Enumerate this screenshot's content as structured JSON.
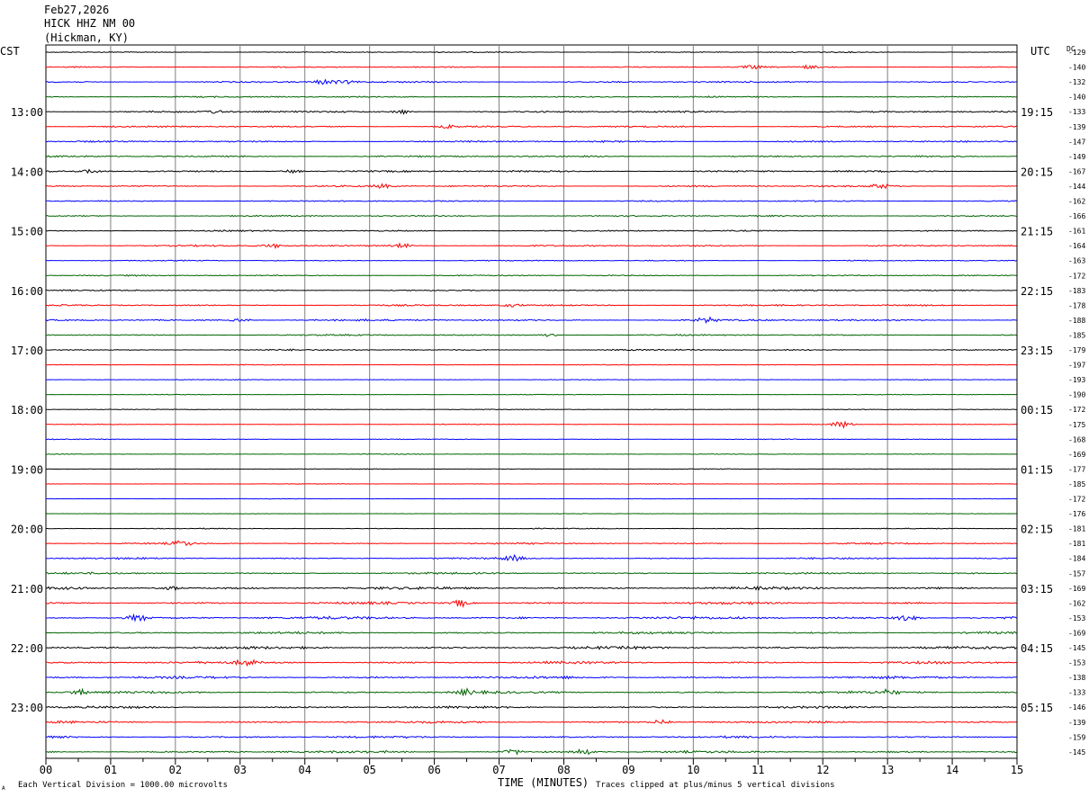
{
  "header": {
    "date": "Feb27,2026",
    "station": "HICK HHZ NM 00",
    "location": "(Hickman, KY)"
  },
  "footer": {
    "vertical_division": "Each Vertical Division = 1000.00 microvolts",
    "clipping": "Traces clipped at plus/minus 5 vertical divisions",
    "corner_mark": "A"
  },
  "colors": {
    "trace_cycle": [
      "#000000",
      "#ff0000",
      "#0000ff",
      "#006400"
    ],
    "grid": "#808080"
  },
  "chart_data": {
    "type": "line",
    "title": "",
    "xlabel": "TIME (MINUTES)",
    "ylabel_left": "CST",
    "ylabel_right": "UTC",
    "dc_label": "DC",
    "xlim": [
      0,
      15
    ],
    "x_ticks": [
      "00",
      "01",
      "02",
      "03",
      "04",
      "05",
      "06",
      "07",
      "08",
      "09",
      "10",
      "11",
      "12",
      "13",
      "14",
      "15"
    ],
    "left_hour_labels": [
      {
        "row": 4,
        "label": "13:00"
      },
      {
        "row": 8,
        "label": "14:00"
      },
      {
        "row": 12,
        "label": "15:00"
      },
      {
        "row": 16,
        "label": "16:00"
      },
      {
        "row": 20,
        "label": "17:00"
      },
      {
        "row": 24,
        "label": "18:00"
      },
      {
        "row": 28,
        "label": "19:00"
      },
      {
        "row": 32,
        "label": "20:00"
      },
      {
        "row": 36,
        "label": "21:00"
      },
      {
        "row": 40,
        "label": "22:00"
      },
      {
        "row": 44,
        "label": "23:00"
      }
    ],
    "right_hour_labels": [
      {
        "row": 4,
        "label": "19:15"
      },
      {
        "row": 8,
        "label": "20:15"
      },
      {
        "row": 12,
        "label": "21:15"
      },
      {
        "row": 16,
        "label": "22:15"
      },
      {
        "row": 20,
        "label": "23:15"
      },
      {
        "row": 24,
        "label": "00:15"
      },
      {
        "row": 28,
        "label": "01:15"
      },
      {
        "row": 32,
        "label": "02:15"
      },
      {
        "row": 36,
        "label": "03:15"
      },
      {
        "row": 40,
        "label": "04:15"
      },
      {
        "row": 44,
        "label": "05:15"
      }
    ],
    "dc_offsets": [
      -129,
      -140,
      -132,
      -140,
      -133,
      -139,
      -147,
      -149,
      -167,
      -144,
      -162,
      -166,
      -161,
      -164,
      -163,
      -172,
      -183,
      -178,
      -188,
      -185,
      -179,
      -197,
      -193,
      -190,
      -172,
      -175,
      -168,
      -169,
      -177,
      -185,
      -172,
      -176,
      -181,
      -181,
      -184,
      -157,
      -169,
      -162,
      -153,
      -169,
      -145,
      -153,
      -138,
      -133,
      -146,
      -139,
      -159,
      -145
    ],
    "trace_activity": [
      0.6,
      0.7,
      0.9,
      0.8,
      1.0,
      0.9,
      0.9,
      0.9,
      1.0,
      0.9,
      0.8,
      0.8,
      0.8,
      0.9,
      0.6,
      0.7,
      0.7,
      0.9,
      1.0,
      0.8,
      0.8,
      0.5,
      0.4,
      0.4,
      0.4,
      0.4,
      0.4,
      0.4,
      0.4,
      0.3,
      0.3,
      0.3,
      0.5,
      0.8,
      0.9,
      1.0,
      1.4,
      1.3,
      1.5,
      1.2,
      1.4,
      1.3,
      1.3,
      1.3,
      1.2,
      1.2,
      1.1,
      1.2
    ],
    "events": [
      {
        "row": 1,
        "minute": 10.9,
        "amp": 3
      },
      {
        "row": 1,
        "minute": 11.8,
        "amp": 2
      },
      {
        "row": 2,
        "minute": 4.3,
        "amp": 4
      },
      {
        "row": 2,
        "minute": 4.6,
        "amp": 3
      },
      {
        "row": 4,
        "minute": 2.6,
        "amp": 3
      },
      {
        "row": 4,
        "minute": 5.5,
        "amp": 3
      },
      {
        "row": 5,
        "minute": 6.2,
        "amp": 3
      },
      {
        "row": 8,
        "minute": 0.7,
        "amp": 3
      },
      {
        "row": 8,
        "minute": 3.8,
        "amp": 3
      },
      {
        "row": 9,
        "minute": 5.2,
        "amp": 3
      },
      {
        "row": 9,
        "minute": 12.9,
        "amp": 4
      },
      {
        "row": 13,
        "minute": 3.5,
        "amp": 3
      },
      {
        "row": 13,
        "minute": 5.5,
        "amp": 3
      },
      {
        "row": 17,
        "minute": 7.2,
        "amp": 3
      },
      {
        "row": 18,
        "minute": 3.0,
        "amp": 3
      },
      {
        "row": 18,
        "minute": 10.2,
        "amp": 4
      },
      {
        "row": 19,
        "minute": 7.8,
        "amp": 3
      },
      {
        "row": 25,
        "minute": 12.3,
        "amp": 6
      },
      {
        "row": 33,
        "minute": 2.1,
        "amp": 5
      },
      {
        "row": 34,
        "minute": 7.2,
        "amp": 4
      },
      {
        "row": 36,
        "minute": 1.9,
        "amp": 4
      },
      {
        "row": 37,
        "minute": 6.4,
        "amp": 5
      },
      {
        "row": 38,
        "minute": 1.4,
        "amp": 5
      },
      {
        "row": 38,
        "minute": 13.3,
        "amp": 5
      },
      {
        "row": 41,
        "minute": 3.1,
        "amp": 4
      },
      {
        "row": 43,
        "minute": 0.5,
        "amp": 4
      },
      {
        "row": 43,
        "minute": 6.5,
        "amp": 4
      },
      {
        "row": 43,
        "minute": 13.0,
        "amp": 4
      },
      {
        "row": 45,
        "minute": 9.5,
        "amp": 4
      },
      {
        "row": 47,
        "minute": 7.2,
        "amp": 4
      },
      {
        "row": 47,
        "minute": 8.3,
        "amp": 4
      }
    ]
  }
}
